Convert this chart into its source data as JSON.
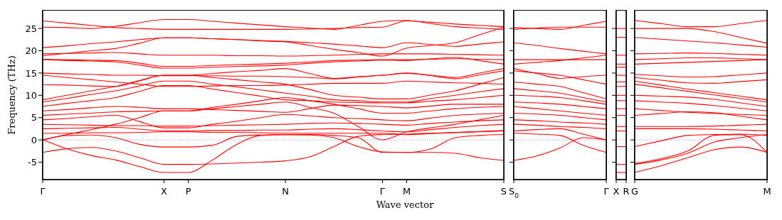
{
  "chart_data": [
    {
      "type": "line",
      "ylabel": "Frequency (THz)",
      "xlabel": "Wave vector",
      "line_style": "solid",
      "ylim": [
        -8.9,
        29
      ],
      "yticks": [
        -5,
        0,
        5,
        10,
        15,
        20,
        25
      ],
      "categories": [
        "Γ",
        null,
        null,
        null,
        null,
        "X",
        "P",
        null,
        null,
        null,
        "N",
        null,
        null,
        null,
        "Γ",
        "M",
        null,
        null,
        null,
        "S"
      ],
      "ref_lines": [
        {
          "axis": "y",
          "value": 0,
          "color": "#7777ff",
          "line_style": "dotted"
        }
      ],
      "series": [
        {
          "color": "#ff0000",
          "values": [
            26.7,
            26.2,
            25.7,
            25.2,
            25.0,
            24.8,
            24.8,
            24.8,
            24.8,
            24.8,
            24.8,
            24.9,
            25.0,
            25.2,
            25.3,
            26.7,
            26.4,
            26.0,
            25.7,
            25.4
          ]
        },
        {
          "color": "#ff0000",
          "values": [
            25.3,
            25.2,
            25.0,
            25.5,
            26.3,
            27.0,
            27.0,
            26.6,
            26.2,
            25.8,
            25.4,
            25.1,
            24.8,
            25.7,
            26.6,
            26.8,
            26.1,
            25.4,
            25.1,
            24.8
          ]
        },
        {
          "color": "#ff0000",
          "values": [
            20.7,
            21.1,
            21.6,
            22.0,
            22.5,
            22.9,
            22.9,
            22.7,
            22.5,
            22.3,
            22.1,
            21.8,
            21.5,
            21.1,
            20.7,
            21.8,
            21.4,
            21.0,
            21.5,
            22.0
          ]
        },
        {
          "color": "#ff0000",
          "values": [
            19.3,
            19.4,
            19.5,
            19.6,
            19.3,
            19.0,
            19.0,
            19.0,
            18.9,
            18.9,
            18.8,
            18.9,
            19.0,
            19.2,
            19.3,
            19.3,
            19.3,
            19.2,
            19.1,
            19.0
          ]
        },
        {
          "color": "#ff0000",
          "values": [
            18.9,
            19.4,
            20.0,
            20.5,
            21.7,
            22.9,
            22.9,
            22.7,
            22.5,
            22.2,
            22.0,
            21.2,
            20.3,
            19.6,
            18.8,
            20.6,
            21.2,
            21.8,
            23.6,
            25.3
          ]
        },
        {
          "color": "#ff0000",
          "values": [
            18.1,
            18.0,
            17.9,
            17.8,
            17.2,
            16.5,
            16.5,
            16.7,
            16.9,
            17.0,
            17.2,
            17.5,
            17.8,
            17.9,
            18.0,
            18.0,
            18.1,
            18.2,
            18.1,
            18.0
          ]
        },
        {
          "color": "#ff0000",
          "values": [
            18.0,
            17.8,
            17.7,
            17.5,
            16.8,
            16.1,
            16.1,
            16.3,
            16.5,
            16.6,
            16.8,
            17.2,
            17.5,
            17.7,
            17.9,
            17.8,
            18.2,
            18.5,
            17.8,
            17.0
          ]
        },
        {
          "color": "#ff0000",
          "values": [
            15.0,
            14.8,
            14.7,
            14.5,
            14.5,
            14.4,
            14.4,
            14.4,
            14.3,
            14.3,
            14.2,
            14.0,
            13.7,
            14.1,
            14.5,
            15.0,
            14.4,
            13.7,
            14.6,
            15.5
          ]
        },
        {
          "color": "#ff0000",
          "values": [
            14.5,
            14.0,
            13.5,
            13.0,
            12.5,
            12.0,
            12.0,
            12.1,
            12.2,
            12.2,
            12.3,
            12.5,
            12.7,
            12.7,
            12.7,
            13.2,
            13.0,
            12.8,
            12.7,
            12.5
          ]
        },
        {
          "color": "#ff0000",
          "values": [
            12.4,
            12.3,
            12.1,
            12.0,
            13.3,
            14.5,
            14.5,
            14.9,
            15.3,
            15.6,
            16.0,
            14.9,
            13.8,
            14.2,
            14.5,
            14.9,
            14.5,
            14.0,
            15.0,
            16.0
          ]
        },
        {
          "color": "#ff0000",
          "values": [
            9.0,
            10.0,
            11.0,
            12.0,
            13.3,
            14.5,
            14.5,
            14.0,
            13.5,
            13.0,
            12.5,
            11.3,
            10.0,
            9.6,
            9.2,
            9.2,
            10.1,
            11.0,
            12.5,
            14.0
          ]
        },
        {
          "color": "#ff0000",
          "values": [
            8.5,
            9.3,
            10.2,
            11.0,
            12.1,
            13.2,
            13.2,
            12.5,
            11.9,
            11.2,
            10.5,
            9.8,
            9.0,
            8.8,
            8.5,
            8.5,
            9.3,
            10.0,
            10.8,
            11.5
          ]
        },
        {
          "color": "#ff0000",
          "values": [
            7.5,
            8.2,
            8.8,
            9.5,
            10.9,
            12.2,
            12.2,
            11.4,
            10.6,
            9.8,
            9.0,
            8.8,
            8.5,
            8.4,
            8.3,
            8.3,
            8.7,
            9.0,
            9.5,
            10.0
          ]
        },
        {
          "color": "#ff0000",
          "values": [
            6.5,
            6.8,
            7.2,
            7.5,
            7.3,
            7.0,
            7.0,
            6.8,
            6.6,
            6.4,
            6.2,
            7.0,
            7.8,
            7.7,
            7.5,
            7.2,
            7.6,
            8.0,
            8.0,
            8.0
          ]
        },
        {
          "color": "#ff0000",
          "values": [
            5.5,
            5.8,
            6.0,
            6.3,
            6.4,
            6.5,
            6.5,
            7.3,
            8.0,
            8.8,
            9.5,
            8.8,
            8.0,
            7.0,
            6.0,
            6.0,
            6.5,
            7.0,
            7.3,
            7.5
          ]
        },
        {
          "color": "#ff0000",
          "values": [
            4.5,
            4.8,
            5.2,
            5.5,
            4.1,
            2.7,
            2.7,
            3.5,
            4.2,
            5.0,
            5.7,
            5.4,
            5.0,
            4.8,
            4.5,
            4.3,
            4.9,
            5.5,
            5.8,
            6.0
          ]
        },
        {
          "color": "#ff0000",
          "values": [
            3.5,
            3.4,
            3.3,
            3.2,
            3.2,
            3.1,
            3.1,
            3.2,
            3.3,
            3.4,
            3.5,
            3.7,
            3.8,
            3.7,
            3.5,
            3.3,
            3.7,
            4.0,
            4.3,
            4.5
          ]
        },
        {
          "color": "#ff0000",
          "values": [
            2.5,
            2.6,
            2.7,
            2.8,
            2.4,
            2.0,
            2.0,
            2.1,
            2.1,
            2.2,
            2.2,
            2.4,
            2.5,
            2.3,
            2.0,
            1.8,
            2.3,
            2.8,
            3.2,
            3.5
          ]
        },
        {
          "color": "#ff0000",
          "values": [
            1.5,
            1.5,
            1.6,
            1.6,
            1.7,
            1.8,
            1.8,
            1.7,
            1.7,
            1.6,
            1.5,
            1.5,
            1.5,
            1.5,
            1.5,
            1.2,
            1.4,
            1.6,
            1.8,
            2.0
          ]
        },
        {
          "color": "#ff0000",
          "values": [
            0,
            1.2,
            2.3,
            3.5,
            5.0,
            6.5,
            6.5,
            7.0,
            7.5,
            8.0,
            8.5,
            7.3,
            6.0,
            3.0,
            0,
            1.8,
            2.7,
            3.5,
            4.5,
            5.5
          ]
        },
        {
          "color": "#ff0000",
          "values": [
            -2.8,
            -2.0,
            -1.7,
            -2.5,
            -4.0,
            -5.5,
            -5.5,
            -5.4,
            -5.2,
            -5.0,
            -4.7,
            -3.8,
            -1.5,
            0.8,
            1.2,
            1.3,
            1.5,
            1.7,
            1.9,
            2.1
          ]
        },
        {
          "color": "#ff0000",
          "values": [
            0,
            -2.0,
            -3.5,
            -4.5,
            -6.0,
            -7.3,
            -7.3,
            -4.5,
            -1.0,
            1.0,
            1.2,
            1.2,
            1.0,
            0.5,
            -2.8,
            -2.8,
            -2.8,
            -3.0,
            -4.0,
            -4.6
          ]
        },
        {
          "color": "#ff0000",
          "values": [
            0,
            1.0,
            1.1,
            0.5,
            -1.0,
            -1.6,
            -1.6,
            -1.2,
            0.8,
            1.1,
            1.2,
            1.1,
            0.5,
            -1.5,
            -2.7,
            -2.8,
            -2.0,
            0.5,
            1.0,
            1.2
          ]
        }
      ]
    },
    {
      "type": "line",
      "tick_labels": "x",
      "line_style": "solid",
      "ylim": [
        -8.9,
        29
      ],
      "yticks": [
        -5,
        0,
        5,
        10,
        15,
        20,
        25
      ],
      "categories": [
        "S$_{0}$",
        null,
        null,
        null,
        "Γ"
      ],
      "ref_lines": [
        {
          "axis": "y",
          "value": 0,
          "color": "#7777ff",
          "line_style": "dotted"
        }
      ],
      "series": [
        {
          "color": "#ff0000",
          "values": [
            25.2,
            25.0,
            24.8,
            25.7,
            26.6
          ]
        },
        {
          "color": "#ff0000",
          "values": [
            24.8,
            25.1,
            25.3,
            25.3,
            25.3
          ]
        },
        {
          "color": "#ff0000",
          "values": [
            21.8,
            21.2,
            20.5,
            19.9,
            19.3
          ]
        },
        {
          "color": "#ff0000",
          "values": [
            18.0,
            18.0,
            18.0,
            18.0,
            18.0
          ]
        },
        {
          "color": "#ff0000",
          "values": [
            17.0,
            17.4,
            17.8,
            18.4,
            19.0
          ]
        },
        {
          "color": "#ff0000",
          "values": [
            16.0,
            14.9,
            13.8,
            14.2,
            14.5
          ]
        },
        {
          "color": "#ff0000",
          "values": [
            15.5,
            15.0,
            14.5,
            13.5,
            12.5
          ]
        },
        {
          "color": "#ff0000",
          "values": [
            13.0,
            12.5,
            12.0,
            10.6,
            9.2
          ]
        },
        {
          "color": "#ff0000",
          "values": [
            11.5,
            11.0,
            10.5,
            9.5,
            8.5
          ]
        },
        {
          "color": "#ff0000",
          "values": [
            10.0,
            9.8,
            9.5,
            8.8,
            8.0
          ]
        },
        {
          "color": "#ff0000",
          "values": [
            8.5,
            8.3,
            8.0,
            7.5,
            7.0
          ]
        },
        {
          "color": "#ff0000",
          "values": [
            7.5,
            7.0,
            6.5,
            6.0,
            5.5
          ]
        },
        {
          "color": "#ff0000",
          "values": [
            6.0,
            5.8,
            5.5,
            5.0,
            4.5
          ]
        },
        {
          "color": "#ff0000",
          "values": [
            4.5,
            4.3,
            4.0,
            3.8,
            3.5
          ]
        },
        {
          "color": "#ff0000",
          "values": [
            3.5,
            3.3,
            3.0,
            2.8,
            2.5
          ]
        },
        {
          "color": "#ff0000",
          "values": [
            2.0,
            2.3,
            2.5,
            1.3,
            0
          ]
        },
        {
          "color": "#ff0000",
          "values": [
            1.5,
            1.3,
            1.0,
            -1.2,
            -2.8
          ]
        },
        {
          "color": "#ff0000",
          "values": [
            -4.6,
            -3.6,
            -1.8,
            0.5,
            0
          ]
        }
      ]
    },
    {
      "type": "line",
      "tick_labels": "x",
      "line_style": "solid",
      "ylim": [
        -8.9,
        29
      ],
      "yticks": [
        -5,
        0,
        5,
        10,
        15,
        20,
        25
      ],
      "categories": [
        "X",
        "R"
      ],
      "ref_lines": [
        {
          "axis": "y",
          "value": 0,
          "color": "#7777ff",
          "line_style": "dotted"
        }
      ],
      "series": [
        {
          "color": "#ff0000",
          "values": [
            25,
            25
          ]
        },
        {
          "color": "#ff0000",
          "values": [
            23,
            23
          ]
        },
        {
          "color": "#ff0000",
          "values": [
            19,
            19
          ]
        },
        {
          "color": "#ff0000",
          "values": [
            17,
            17
          ]
        },
        {
          "color": "#ff0000",
          "values": [
            16.3,
            16.3
          ]
        },
        {
          "color": "#ff0000",
          "values": [
            14.5,
            14.5
          ]
        },
        {
          "color": "#ff0000",
          "values": [
            13,
            13
          ]
        },
        {
          "color": "#ff0000",
          "values": [
            12,
            12
          ]
        },
        {
          "color": "#ff0000",
          "values": [
            10,
            10
          ]
        },
        {
          "color": "#ff0000",
          "values": [
            8.8,
            8.8
          ]
        },
        {
          "color": "#ff0000",
          "values": [
            7,
            7
          ]
        },
        {
          "color": "#ff0000",
          "values": [
            5.5,
            5.5
          ]
        },
        {
          "color": "#ff0000",
          "values": [
            3,
            3
          ]
        },
        {
          "color": "#ff0000",
          "values": [
            2,
            2
          ]
        },
        {
          "color": "#ff0000",
          "values": [
            -1.5,
            -1.5
          ]
        },
        {
          "color": "#ff0000",
          "values": [
            -5.5,
            -5.5
          ]
        },
        {
          "color": "#ff0000",
          "values": [
            -7.3,
            -7.3
          ]
        }
      ]
    },
    {
      "type": "line",
      "tick_labels": "x",
      "line_style": "solid",
      "ylim": [
        -8.9,
        29
      ],
      "yticks": [
        -5,
        0,
        5,
        10,
        15,
        20,
        25
      ],
      "categories": [
        "G",
        null,
        null,
        null,
        null,
        "M"
      ],
      "ref_lines": [
        {
          "axis": "y",
          "value": 0,
          "color": "#7777ff",
          "line_style": "dotted"
        }
      ],
      "series": [
        {
          "color": "#ff0000",
          "values": [
            26.8,
            26.1,
            25.4,
            25.4,
            26.1,
            26.8
          ]
        },
        {
          "color": "#ff0000",
          "values": [
            25.0,
            25.0,
            25.0,
            24.3,
            23.0,
            21.7
          ]
        },
        {
          "color": "#ff0000",
          "values": [
            23.0,
            22.6,
            22.2,
            21.8,
            21.3,
            20.8
          ]
        },
        {
          "color": "#ff0000",
          "values": [
            19.3,
            19.4,
            19.5,
            19.4,
            19.2,
            19.0
          ]
        },
        {
          "color": "#ff0000",
          "values": [
            18.0,
            18.2,
            18.4,
            18.4,
            18.2,
            18.0
          ]
        },
        {
          "color": "#ff0000",
          "values": [
            17.0,
            17.2,
            17.4,
            17.6,
            17.8,
            18.0
          ]
        },
        {
          "color": "#ff0000",
          "values": [
            14.7,
            14.4,
            14.1,
            14.2,
            14.6,
            15.0
          ]
        },
        {
          "color": "#ff0000",
          "values": [
            14.0,
            13.4,
            12.8,
            12.7,
            13.1,
            13.5
          ]
        },
        {
          "color": "#ff0000",
          "values": [
            13.2,
            12.3,
            11.4,
            10.6,
            9.8,
            9.0
          ]
        },
        {
          "color": "#ff0000",
          "values": [
            12.5,
            11.7,
            10.9,
            10.1,
            9.3,
            8.5
          ]
        },
        {
          "color": "#ff0000",
          "values": [
            10.0,
            9.8,
            9.6,
            9.1,
            8.3,
            7.5
          ]
        },
        {
          "color": "#ff0000",
          "values": [
            8.8,
            8.5,
            8.2,
            7.7,
            7.1,
            6.5
          ]
        },
        {
          "color": "#ff0000",
          "values": [
            7.0,
            6.6,
            6.2,
            5.9,
            5.7,
            5.5
          ]
        },
        {
          "color": "#ff0000",
          "values": [
            5.5,
            5.9,
            6.3,
            6.1,
            5.3,
            4.5
          ]
        },
        {
          "color": "#ff0000",
          "values": [
            3.0,
            3.0,
            3.0,
            3.1,
            3.3,
            3.5
          ]
        },
        {
          "color": "#ff0000",
          "values": [
            2.5,
            2.5,
            2.5,
            2.4,
            2.2,
            2.0
          ]
        },
        {
          "color": "#ff0000",
          "values": [
            -1.5,
            -0.2,
            1.0,
            1.2,
            1.3,
            1.0
          ]
        },
        {
          "color": "#ff0000",
          "values": [
            -5.3,
            -4.2,
            -2.5,
            1.0,
            1.2,
            -2.8
          ]
        },
        {
          "color": "#ff0000",
          "values": [
            -5.5,
            -4.5,
            -3.0,
            -0.5,
            0.5,
            1.2
          ]
        },
        {
          "color": "#ff0000",
          "values": [
            -7.3,
            -5.8,
            -4.0,
            -2.2,
            -1.6,
            -2.8
          ]
        }
      ]
    }
  ]
}
